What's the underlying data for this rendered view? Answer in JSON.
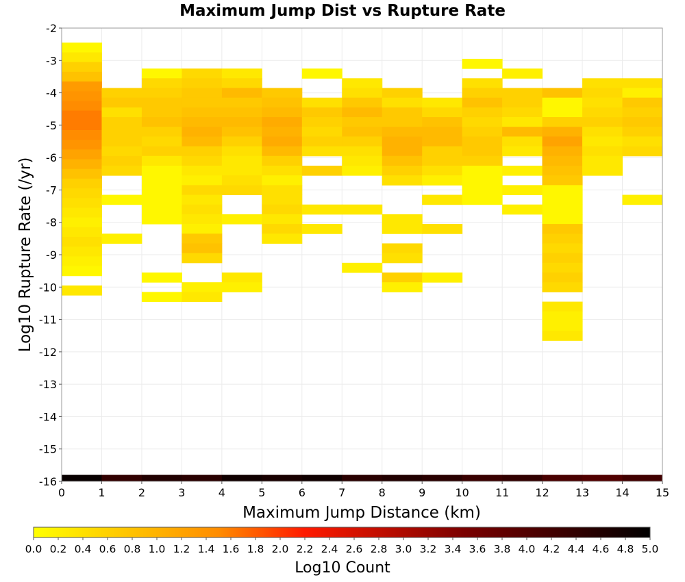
{
  "chart_data": {
    "type": "heatmap",
    "title": "Maximum Jump Dist vs Rupture Rate",
    "xlabel": "Maximum Jump Distance (km)",
    "ylabel": "Log10 Rupture Rate (/yr)",
    "colorbar_label": "Log10 Count",
    "xlim": [
      0,
      15
    ],
    "ylim": [
      -16,
      -2
    ],
    "x_ticks": [
      "0",
      "1",
      "2",
      "3",
      "4",
      "5",
      "6",
      "7",
      "8",
      "9",
      "10",
      "11",
      "12",
      "13",
      "14",
      "15"
    ],
    "y_ticks": [
      "-2",
      "-3",
      "-4",
      "-5",
      "-6",
      "-7",
      "-8",
      "-9",
      "-10",
      "-11",
      "-12",
      "-13",
      "-14",
      "-15",
      "-16"
    ],
    "colorbar_ticks": [
      "0.0",
      "0.2",
      "0.4",
      "0.6",
      "0.8",
      "1.0",
      "1.2",
      "1.4",
      "1.6",
      "1.8",
      "2.0",
      "2.2",
      "2.4",
      "2.6",
      "2.8",
      "3.0",
      "3.2",
      "3.4",
      "3.6",
      "3.8",
      "4.0",
      "4.2",
      "4.4",
      "4.6",
      "4.8",
      "5.0"
    ],
    "color_range": [
      0,
      5
    ],
    "bin_width_x": 1,
    "bin_height_y": 0.3,
    "grid": true,
    "colors": {
      "low": "#ffff00",
      "mid_orange": "#ff8c00",
      "mid_red": "#ff1a00",
      "high_dark": "#7a0000",
      "max": "#000000"
    },
    "columns": [
      {
        "x0": 0,
        "y_start": -2.45,
        "values": [
          0.1,
          0.3,
          0.6,
          0.8,
          1.3,
          1.4,
          1.5,
          1.6,
          1.6,
          1.5,
          1.4,
          1.2,
          1.0,
          0.8,
          0.6,
          0.5,
          0.4,
          0.3,
          0.2,
          0.3,
          0.4,
          0.3,
          0.2,
          0.1,
          null,
          0.3
        ]
      },
      {
        "x0": 1,
        "y_start": -3.85,
        "values": [
          0.6,
          0.7,
          0.4,
          0.6,
          0.6,
          0.6,
          0.5,
          0.6,
          0.5,
          null,
          null,
          0.1,
          null,
          null,
          null,
          0.2
        ]
      },
      {
        "x0": 2,
        "y_start": -3.25,
        "values": [
          0.1,
          0.5,
          0.6,
          0.7,
          0.7,
          0.8,
          0.6,
          0.5,
          0.6,
          0.3,
          0.1,
          0.1,
          0.1,
          0.1,
          0.1,
          0.1,
          null,
          null,
          null,
          null,
          null,
          0.1,
          null,
          0.1
        ]
      },
      {
        "x0": 3,
        "y_start": -3.25,
        "values": [
          0.5,
          0.6,
          0.7,
          0.7,
          0.8,
          0.9,
          1.0,
          0.9,
          0.6,
          0.5,
          0.3,
          0.2,
          0.5,
          0.3,
          0.4,
          0.3,
          0.2,
          0.7,
          0.8,
          0.5,
          null,
          null,
          0.2,
          0.3
        ]
      },
      {
        "x0": 4,
        "y_start": -3.25,
        "values": [
          0.3,
          0.5,
          0.9,
          0.7,
          0.8,
          0.9,
          0.8,
          0.6,
          0.4,
          0.3,
          0.3,
          0.4,
          0.5,
          null,
          null,
          0.2,
          null,
          null,
          null,
          null,
          null,
          0.3,
          0.2
        ]
      },
      {
        "x0": 5,
        "y_start": -3.85,
        "values": [
          0.7,
          0.8,
          0.9,
          1.1,
          1.0,
          1.1,
          0.9,
          0.6,
          0.4,
          0.2,
          0.4,
          0.4,
          0.5,
          0.3,
          0.5,
          0.3
        ]
      },
      {
        "x0": 6,
        "y_start": -3.25,
        "values": [
          0.1,
          null,
          null,
          0.4,
          0.7,
          0.6,
          0.5,
          0.6,
          0.4,
          null,
          0.6,
          null,
          null,
          null,
          0.3,
          null,
          0.3
        ]
      },
      {
        "x0": 7,
        "y_start": -3.55,
        "values": [
          0.3,
          0.4,
          0.7,
          0.9,
          0.7,
          0.8,
          0.6,
          0.4,
          0.3,
          0.2,
          null,
          null,
          null,
          0.3,
          null,
          null,
          null,
          null,
          null,
          0.2
        ]
      },
      {
        "x0": 8,
        "y_start": -3.85,
        "values": [
          0.6,
          0.4,
          0.7,
          0.7,
          0.9,
          1.0,
          1.0,
          0.8,
          0.6,
          0.4,
          null,
          null,
          null,
          0.3,
          0.3,
          null,
          0.5,
          0.4,
          null,
          0.6,
          0.2
        ]
      },
      {
        "x0": 9,
        "y_start": -4.15,
        "values": [
          0.3,
          0.5,
          0.8,
          0.9,
          0.9,
          0.6,
          0.6,
          0.4,
          0.2,
          null,
          0.3,
          null,
          null,
          0.4,
          null,
          null,
          null,
          null,
          0.2
        ]
      },
      {
        "x0": 10,
        "y_start": -2.95,
        "values": [
          0.1,
          null,
          0.4,
          0.6,
          0.8,
          0.6,
          0.5,
          0.6,
          0.7,
          0.7,
          0.6,
          0.1,
          0.1,
          0.1,
          0.1
        ]
      },
      {
        "x0": 11,
        "y_start": -3.25,
        "values": [
          0.2,
          null,
          0.6,
          0.6,
          0.5,
          0.3,
          0.9,
          0.4,
          0.3,
          null,
          0.2,
          null,
          0.2,
          null,
          0.2
        ]
      },
      {
        "x0": 12,
        "y_start": -3.85,
        "values": [
          0.8,
          0.1,
          0.1,
          0.6,
          1.0,
          1.2,
          1.0,
          0.9,
          0.8,
          0.7,
          0.1,
          0.1,
          0.1,
          0.1,
          0.7,
          0.6,
          0.5,
          0.6,
          0.5,
          0.6,
          0.5,
          null,
          0.3,
          0.2,
          0.2,
          0.3
        ]
      },
      {
        "x0": 13,
        "y_start": -3.55,
        "values": [
          0.4,
          0.5,
          0.4,
          0.5,
          0.6,
          0.4,
          0.3,
          0.4,
          0.3,
          0.3
        ]
      },
      {
        "x0": 14,
        "y_start": -3.55,
        "values": [
          0.4,
          0.2,
          0.7,
          0.6,
          0.7,
          0.6,
          0.4,
          0.5,
          null,
          null,
          null,
          null,
          0.2
        ]
      }
    ],
    "bottom_band": {
      "y0": -16,
      "y1": -15.8,
      "values": [
        4.9,
        4.4,
        4.6,
        4.5,
        4.8,
        4.7,
        4.8,
        4.5,
        4.6,
        4.5,
        4.3,
        4.4,
        4.1,
        4.0,
        4.2
      ]
    }
  }
}
